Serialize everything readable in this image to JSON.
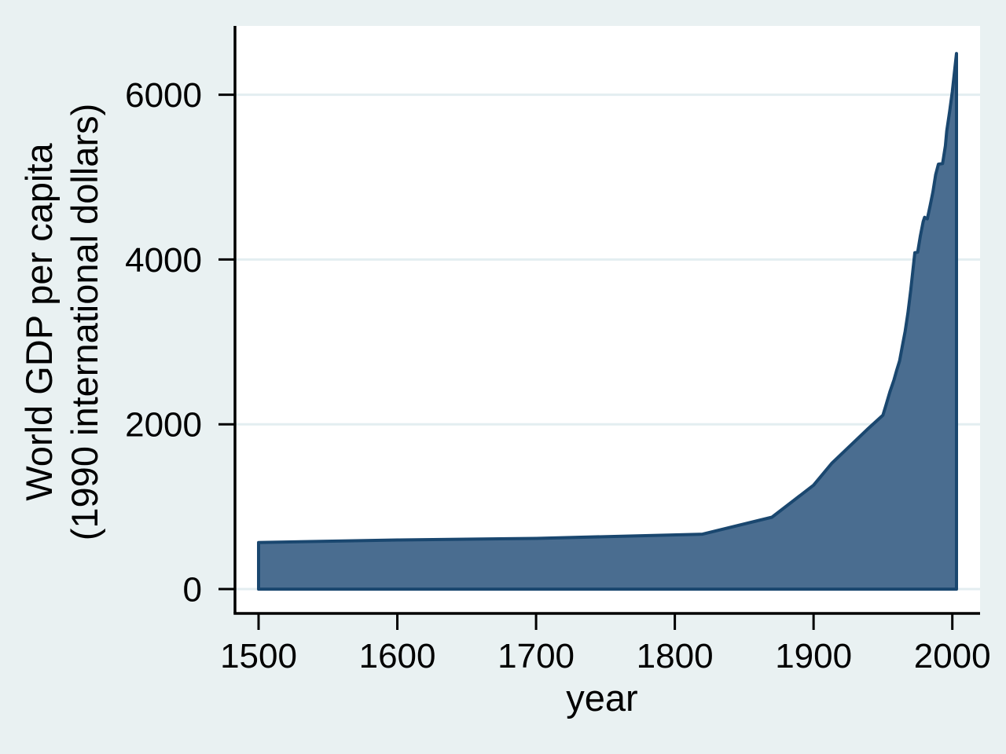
{
  "chart_data": {
    "type": "area",
    "title": "",
    "xlabel": "year",
    "ylabel_line1": "World GDP per capita",
    "ylabel_line2": "(1990 international dollars)",
    "x_ticks": [
      1500,
      1600,
      1700,
      1800,
      1900,
      2000
    ],
    "y_ticks": [
      0,
      2000,
      4000,
      6000
    ],
    "xlim": [
      1483,
      2020
    ],
    "ylim": [
      -295,
      6835
    ],
    "grid": "horizontal-only",
    "legend": "none",
    "baseline": 0,
    "series": [
      {
        "name": "World GDP per capita (1990 international dollars)",
        "points": [
          [
            1500,
            566
          ],
          [
            1600,
            596
          ],
          [
            1700,
            615
          ],
          [
            1820,
            667
          ],
          [
            1870,
            873
          ],
          [
            1900,
            1262
          ],
          [
            1913,
            1525
          ],
          [
            1940,
            1958
          ],
          [
            1950,
            2111
          ],
          [
            1952,
            2223
          ],
          [
            1955,
            2395
          ],
          [
            1958,
            2540
          ],
          [
            1960,
            2662
          ],
          [
            1962,
            2770
          ],
          [
            1964,
            2950
          ],
          [
            1966,
            3130
          ],
          [
            1968,
            3350
          ],
          [
            1970,
            3620
          ],
          [
            1973,
            4083
          ],
          [
            1975,
            4088
          ],
          [
            1977,
            4290
          ],
          [
            1979,
            4460
          ],
          [
            1980,
            4512
          ],
          [
            1982,
            4494
          ],
          [
            1984,
            4650
          ],
          [
            1986,
            4820
          ],
          [
            1988,
            5030
          ],
          [
            1990,
            5157
          ],
          [
            1993,
            5164
          ],
          [
            1995,
            5380
          ],
          [
            1996,
            5560
          ],
          [
            1998,
            5790
          ],
          [
            2000,
            6038
          ],
          [
            2003,
            6500
          ]
        ]
      }
    ]
  },
  "colors": {
    "background": "#e9f1f2",
    "plot_background": "#ffffff",
    "gridline": "#e3eef1",
    "area_fill": "#4a6d90",
    "area_stroke": "#1a476f",
    "axis_line": "#000000",
    "text": "#000000"
  }
}
